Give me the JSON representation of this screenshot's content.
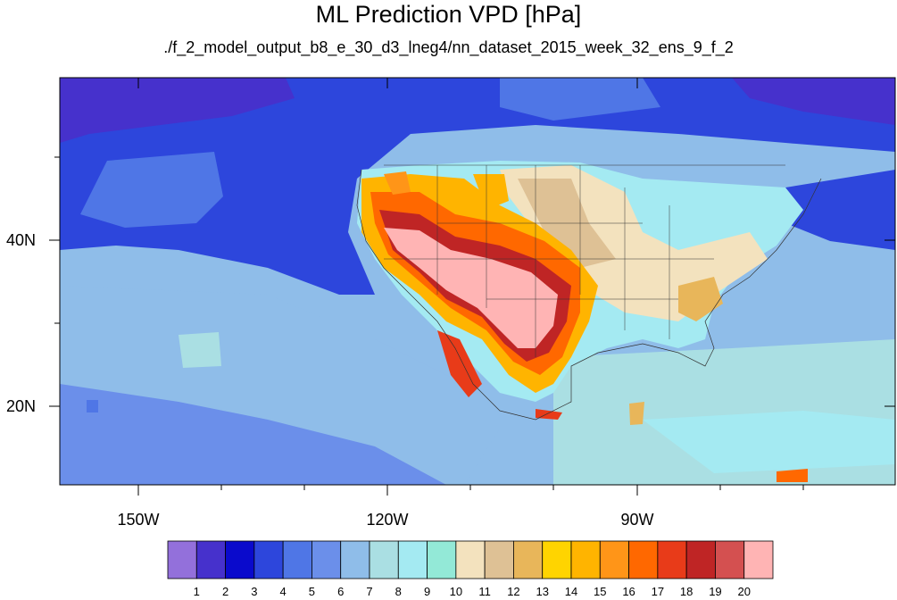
{
  "title": "ML Prediction VPD [hPa]",
  "subtitle": "./f_2_model_output_b8_e_30_d3_lneg4/nn_dataset_2015_week_32_ens_9_f_2",
  "axes": {
    "lat_ticks": [
      "40N",
      "20N"
    ],
    "lon_ticks": [
      "150W",
      "120W",
      "90W"
    ]
  },
  "colorbar": {
    "labels": [
      "1",
      "2",
      "3",
      "4",
      "5",
      "6",
      "7",
      "8",
      "9",
      "10",
      "11",
      "12",
      "13",
      "14",
      "15",
      "16",
      "17",
      "18",
      "19",
      "20"
    ],
    "colors": [
      "#9370DB",
      "#4631CC",
      "#0A0ACC",
      "#2D46DC",
      "#4F76E6",
      "#6B8FEA",
      "#8FBDE9",
      "#AADFE3",
      "#A4EAF2",
      "#93E9D7",
      "#F3E2BE",
      "#DEC195",
      "#E8B65A",
      "#FFD400",
      "#FFB400",
      "#FF9518",
      "#FF6800",
      "#E83B19",
      "#BF2525",
      "#D45050",
      "#FFB4B4"
    ]
  }
}
